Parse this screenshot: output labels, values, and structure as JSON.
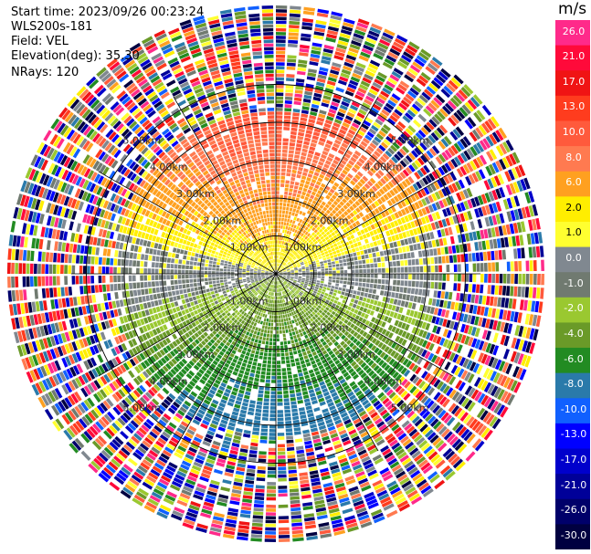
{
  "info": {
    "start_time": "Start time: 2023/09/26 00:23:24",
    "site": "WLS200s-181",
    "field": "Field: VEL",
    "elevation": "Elevation(deg): 35.30",
    "nrays": "NRays: 120"
  },
  "colorbar": {
    "unit": "m/s",
    "levels": [
      {
        "value": "26.0",
        "color": "#ff2a8a"
      },
      {
        "value": "21.0",
        "color": "#ff0a3a"
      },
      {
        "value": "17.0",
        "color": "#f01414"
      },
      {
        "value": "13.0",
        "color": "#ff3c1e"
      },
      {
        "value": "10.0",
        "color": "#ff5a3c"
      },
      {
        "value": "8.0",
        "color": "#ff7a50"
      },
      {
        "value": "6.0",
        "color": "#ffa020"
      },
      {
        "value": "2.0",
        "color": "#ffee00"
      },
      {
        "value": "1.0",
        "color": "#ffff30"
      },
      {
        "value": "0.0",
        "color": "#808890"
      },
      {
        "value": "-1.0",
        "color": "#707a70"
      },
      {
        "value": "-2.0",
        "color": "#9ac830"
      },
      {
        "value": "-4.0",
        "color": "#6a9a28"
      },
      {
        "value": "-6.0",
        "color": "#228b22"
      },
      {
        "value": "-8.0",
        "color": "#2a7aaa"
      },
      {
        "value": "-10.0",
        "color": "#1060ff"
      },
      {
        "value": "-13.0",
        "color": "#0000ff"
      },
      {
        "value": "-17.0",
        "color": "#0000cc"
      },
      {
        "value": "-21.0",
        "color": "#000099"
      },
      {
        "value": "-26.0",
        "color": "#00006a"
      },
      {
        "value": "-30.0",
        "color": "#000040"
      }
    ]
  },
  "chart_data": {
    "type": "heatmap",
    "projection": "polar-ppi",
    "n_rays": 120,
    "range_rings_km": [
      1,
      2,
      3,
      4,
      5
    ],
    "ring_labels": [
      "1.00km",
      "2.00km",
      "3.00km",
      "4.00km",
      "5.00km"
    ],
    "valid_range_km": 4.2,
    "max_range_km": 7.1,
    "pattern": "positive (toward north) velocities 1-10 m/s in northern half, negative (-1 to -8 m/s) in southern half, noisy multicolor returns beyond ~4.2 km",
    "grid": true
  }
}
